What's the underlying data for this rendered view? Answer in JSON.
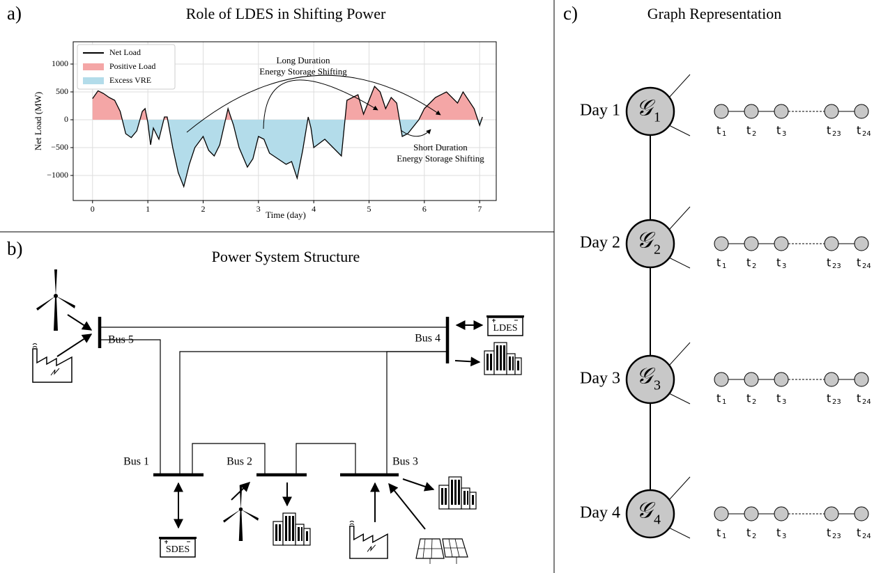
{
  "chart_data": {
    "type": "line",
    "panel_label": "a)",
    "title": "Role of LDES in Shifting Power",
    "x_label": "Time (day)",
    "y_label": "Net Load (MW)",
    "x": [
      0,
      0.1,
      0.2,
      0.3,
      0.4,
      0.5,
      0.6,
      0.7,
      0.8,
      0.9,
      0.95,
      1.0,
      1.05,
      1.1,
      1.2,
      1.3,
      1.35,
      1.45,
      1.55,
      1.65,
      1.75,
      1.85,
      2.0,
      2.1,
      2.2,
      2.3,
      2.45,
      2.55,
      2.65,
      2.8,
      2.9,
      3.0,
      3.1,
      3.2,
      3.35,
      3.5,
      3.6,
      3.7,
      3.8,
      3.9,
      3.95,
      4.0,
      4.2,
      4.4,
      4.5,
      4.6,
      4.8,
      4.9,
      5.0,
      5.1,
      5.2,
      5.3,
      5.4,
      5.5,
      5.6,
      5.7,
      5.9,
      6.0,
      6.2,
      6.4,
      6.6,
      6.7,
      6.9,
      7.0,
      7.05
    ],
    "series": [
      {
        "name": "Net Load",
        "color": "#000000",
        "values": [
          380,
          520,
          470,
          400,
          350,
          150,
          -250,
          -320,
          -200,
          150,
          200,
          -50,
          -450,
          -150,
          -350,
          50,
          50,
          -500,
          -950,
          -1200,
          -800,
          -500,
          -300,
          -550,
          -650,
          -450,
          200,
          -100,
          -500,
          -850,
          -700,
          -300,
          -350,
          -600,
          -700,
          -800,
          -750,
          -1050,
          -550,
          50,
          -150,
          -500,
          -350,
          -550,
          -650,
          350,
          450,
          100,
          350,
          600,
          500,
          200,
          400,
          300,
          -300,
          -250,
          0,
          200,
          400,
          500,
          300,
          500,
          200,
          -100,
          50
        ]
      }
    ],
    "fills": [
      {
        "name": "Positive Load",
        "color": "#f4a6a6"
      },
      {
        "name": "Excess VRE",
        "color": "#b3dcea"
      }
    ],
    "xlim": [
      -0.35,
      7.3
    ],
    "ylim": [
      -1450,
      1400
    ],
    "xticks": [
      0,
      1,
      2,
      3,
      4,
      5,
      6,
      7
    ],
    "yticks": [
      {
        "value": -1000,
        "label": "−1000"
      },
      {
        "value": -500,
        "label": "−500"
      },
      0,
      500,
      1000
    ],
    "grid": true,
    "legend": "upper left",
    "annotations": [
      [
        "Long Duration",
        "Energy Storage Shifting"
      ],
      [
        "Short Duration",
        "Energy Storage Shifting"
      ]
    ]
  },
  "structure": {
    "panel_label": "b)",
    "title": "Power System Structure",
    "buses": [
      "Bus 5",
      "Bus 4",
      "Bus 1",
      "Bus 2",
      "Bus 3"
    ],
    "storage": [
      "LDES",
      "SDES"
    ]
  },
  "graph": {
    "panel_label": "c)",
    "title": "Graph Representation",
    "days": [
      {
        "label": "Day 1",
        "symbol": "𝒢",
        "sub": "1"
      },
      {
        "label": "Day 2",
        "symbol": "𝒢",
        "sub": "2"
      },
      {
        "label": "Day 3",
        "symbol": "𝒢",
        "sub": "3"
      },
      {
        "label": "Day 4",
        "symbol": "𝒢",
        "sub": "4"
      }
    ],
    "time_nodes": [
      {
        "base": "t",
        "sub": "1"
      },
      {
        "base": "t",
        "sub": "2"
      },
      {
        "base": "t",
        "sub": "3"
      },
      {
        "base": "t",
        "sub": "23"
      },
      {
        "base": "t",
        "sub": "24"
      }
    ]
  }
}
